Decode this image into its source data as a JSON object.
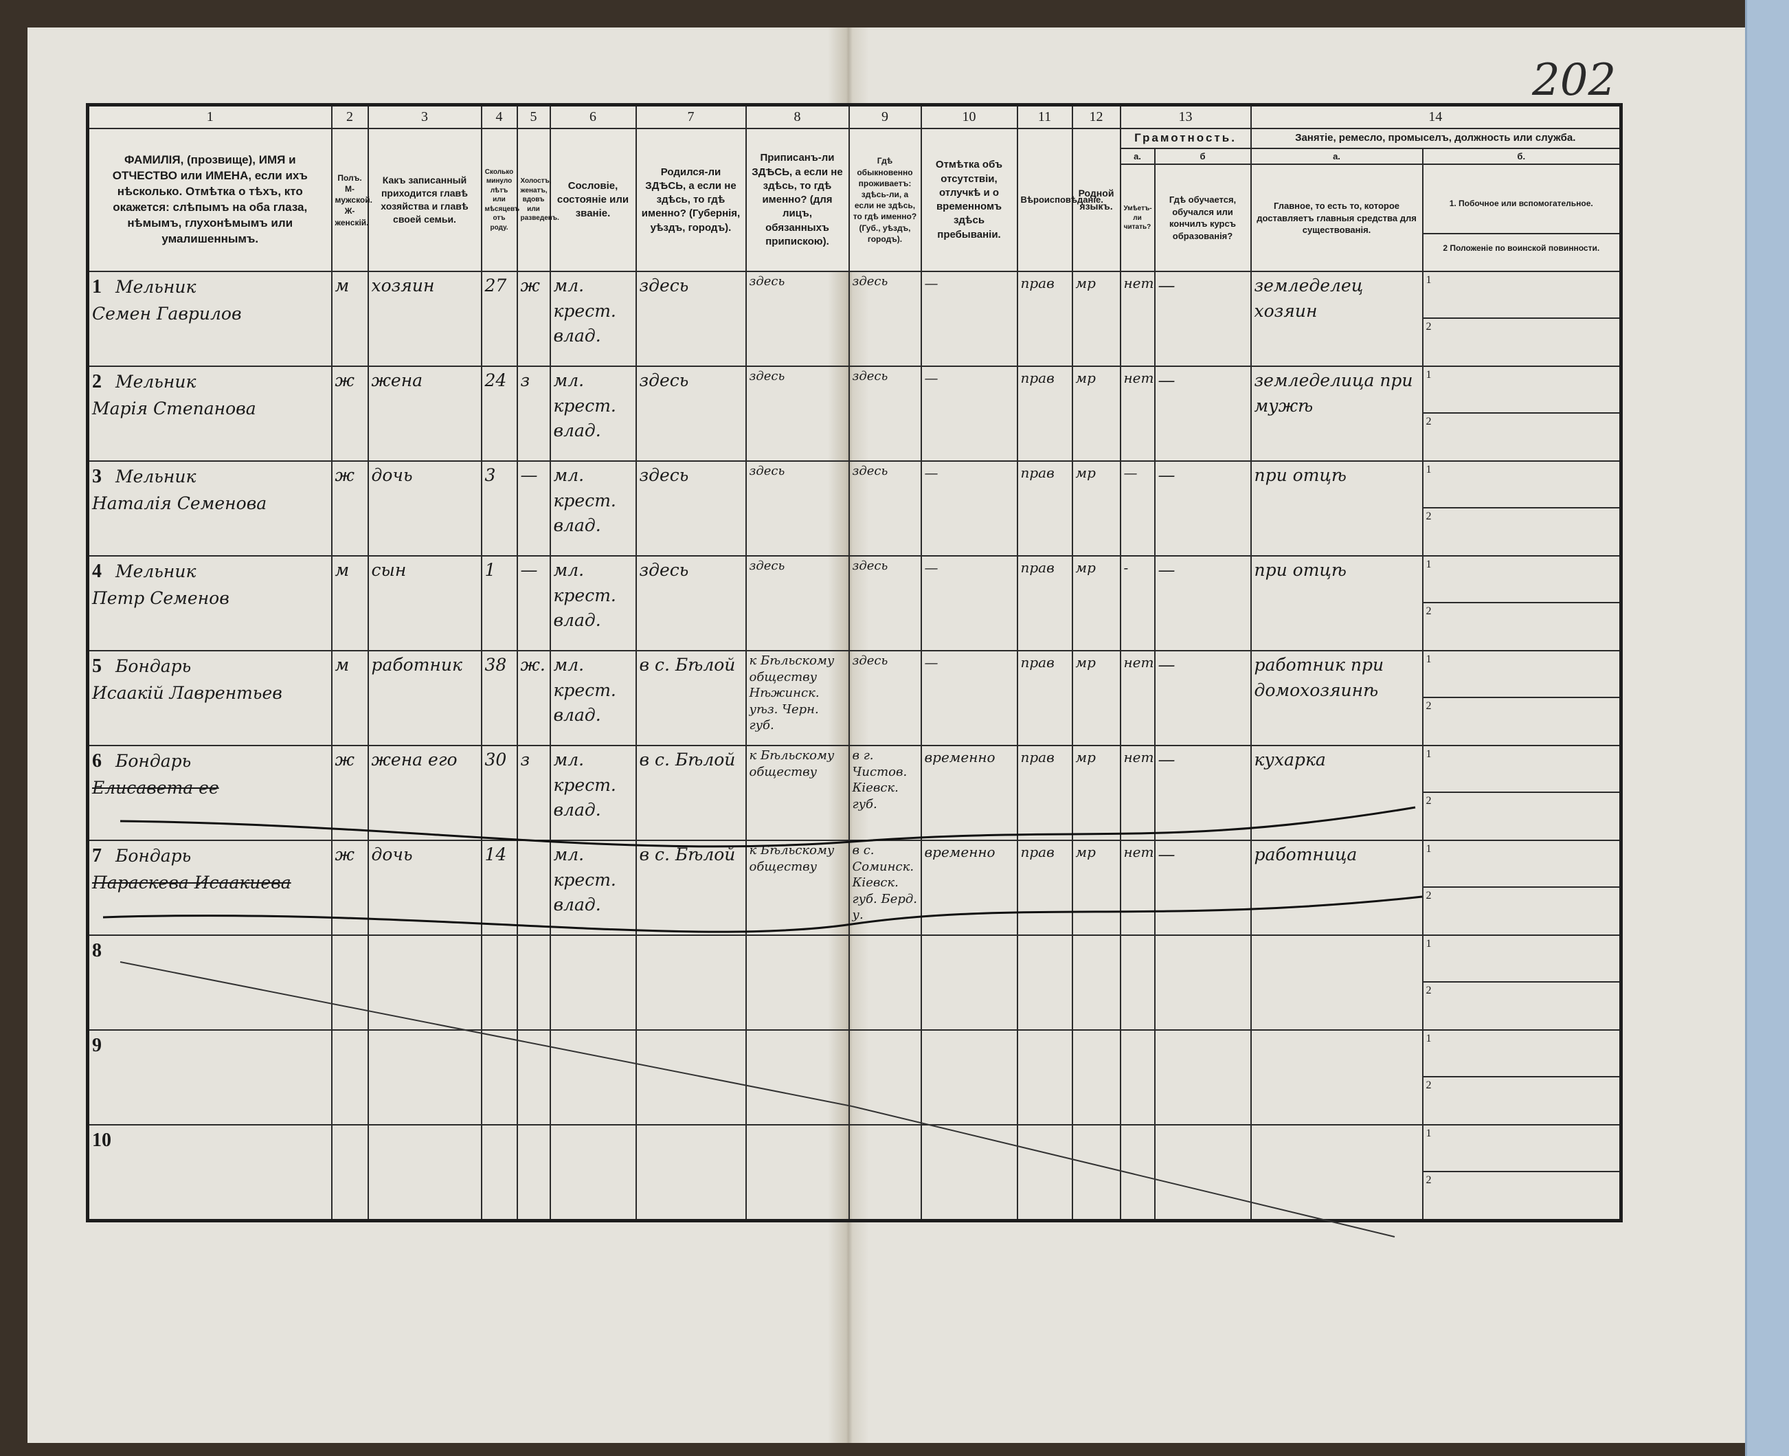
{
  "page_number": "202",
  "header": {
    "col_numbers": [
      "1",
      "2",
      "3",
      "4",
      "5",
      "6",
      "7",
      "8",
      "9",
      "10",
      "11",
      "12",
      "13",
      "14"
    ],
    "col1": "ФАМИЛІЯ, (прозвище), ИМЯ и ОТЧЕСТВО или ИМЕНА, если ихъ нѣсколько. Отмѣтка о тѣхъ, кто окажется: слѣпымъ на оба глаза, нѣмымъ, глухонѣмымъ или умалишеннымъ.",
    "col2": "Полъ. М-мужской. Ж-женскій.",
    "col3": "Какъ записанный приходится главѣ хозяйства и главѣ своей семьи.",
    "col4": "Сколько минуло лѣтъ или мѣсяцевъ отъ роду.",
    "col5": "Холостъ, женатъ, вдовъ или разведенъ.",
    "col6": "Сословіе, состояніе или званіе.",
    "col7": "Родился-ли ЗДѢСЬ, а если не здѣсь, то гдѣ именно? (Губернія, уѣздъ, городъ).",
    "col8": "Приписанъ-ли ЗДѢСЬ, а если не здѣсь, то гдѣ именно? (для лицъ, обязанныхъ припискою).",
    "col9": "Гдѣ обыкновенно проживаетъ: здѣсь-ли, а если не здѣсь, то гдѣ именно? (Губ., уѣздъ, городъ).",
    "col10": "Отмѣтка объ отсутствіи, отлучкѣ и о временномъ здѣсь пребываніи.",
    "col11": "Вѣроисповѣданіе.",
    "col12": "Родной языкъ.",
    "col13": "Грамотность.",
    "col13a_letter": "а.",
    "col13a": "Умѣетъ-ли читать?",
    "col13b_letter": "б",
    "col13b": "Гдѣ обучается, обучался или кончилъ курсъ образованія?",
    "col14": "Занятіе, ремесло, промыселъ, должность или служба.",
    "col14a_letter": "а.",
    "col14a": "Главное, то есть то, которое доставляетъ главныя средства для существованія.",
    "col14b_letter": "б.",
    "col14b_1": "1. Побочное или вспомогательное.",
    "col14b_2": "2 Положеніе по воинской повинности.",
    "sub1": "1",
    "sub2": "2"
  },
  "rows": [
    {
      "no": "1",
      "surname": "Мельник",
      "given": "Семен Гаврилов",
      "sex": "м",
      "relation": "хозяин",
      "age": "27",
      "marital": "ж",
      "estate": "мл. крест. влад.",
      "born": "здесь",
      "registered": "здесь",
      "resides": "здесь",
      "absence": "—",
      "religion": "прав",
      "language": "мр",
      "literate": "нет",
      "education": "—",
      "occupation": "земледелец хозяин",
      "struck": false
    },
    {
      "no": "2",
      "surname": "Мельник",
      "given": "Марія Степанова",
      "sex": "ж",
      "relation": "жена",
      "age": "24",
      "marital": "з",
      "estate": "мл. крест. влад.",
      "born": "здесь",
      "registered": "здесь",
      "resides": "здесь",
      "absence": "—",
      "religion": "прав",
      "language": "мр",
      "literate": "нет",
      "education": "—",
      "occupation": "земледелица при мужѣ",
      "struck": false
    },
    {
      "no": "3",
      "surname": "Мельник",
      "given": "Наталія Семенова",
      "sex": "ж",
      "relation": "дочь",
      "age": "3",
      "marital": "—",
      "estate": "мл. крест. влад.",
      "born": "здесь",
      "registered": "здесь",
      "resides": "здесь",
      "absence": "—",
      "religion": "прав",
      "language": "мр",
      "literate": "—",
      "education": "—",
      "occupation": "при отцѣ",
      "struck": false
    },
    {
      "no": "4",
      "surname": "Мельник",
      "given": "Петр Семенов",
      "sex": "м",
      "relation": "сын",
      "age": "1",
      "marital": "—",
      "estate": "мл. крест. влад.",
      "born": "здесь",
      "registered": "здесь",
      "resides": "здесь",
      "absence": "—",
      "religion": "прав",
      "language": "мр",
      "literate": "-",
      "education": "—",
      "occupation": "при отцѣ",
      "struck": false
    },
    {
      "no": "5",
      "surname": "Бондарь",
      "given": "Исаакій Лаврентьев",
      "sex": "м",
      "relation": "работник",
      "age": "38",
      "marital": "ж.",
      "estate": "мл. крест. влад.",
      "born": "в с. Бѣлой",
      "registered": "к Бѣльскому обществу Нѣжинск. уѣз. Черн. губ.",
      "resides": "здесь",
      "absence": "—",
      "religion": "прав",
      "language": "мр",
      "literate": "нет",
      "education": "—",
      "occupation": "работник при домохозяинѣ",
      "struck": false
    },
    {
      "no": "6",
      "surname": "Бондарь",
      "given": "Елисавета ее",
      "sex": "ж",
      "relation": "жена его",
      "age": "30",
      "marital": "з",
      "estate": "мл. крест. влад.",
      "born": "в с. Бѣлой",
      "registered": "к Бѣльскому обществу",
      "resides": "в г. Чистов. Кіевск. губ.",
      "absence": "временно",
      "religion": "прав",
      "language": "мр",
      "literate": "нет",
      "education": "—",
      "occupation": "кухарка",
      "struck": true
    },
    {
      "no": "7",
      "surname": "Бондарь",
      "given": "Параскева Исаакиева",
      "sex": "ж",
      "relation": "дочь",
      "age": "14",
      "marital": "",
      "estate": "мл. крест. влад.",
      "born": "в с. Бѣлой",
      "registered": "к Бѣльскому обществу",
      "resides": "в с. Соминск. Кіевск. губ. Берд. у.",
      "absence": "временно",
      "religion": "прав",
      "language": "мр",
      "literate": "нет",
      "education": "—",
      "occupation": "работница",
      "struck": true
    },
    {
      "no": "8"
    },
    {
      "no": "9"
    },
    {
      "no": "10"
    }
  ],
  "colors": {
    "paper": "#e5e3dc",
    "ink": "#1a1a1a",
    "blue_edge": "#a9bfd6"
  }
}
